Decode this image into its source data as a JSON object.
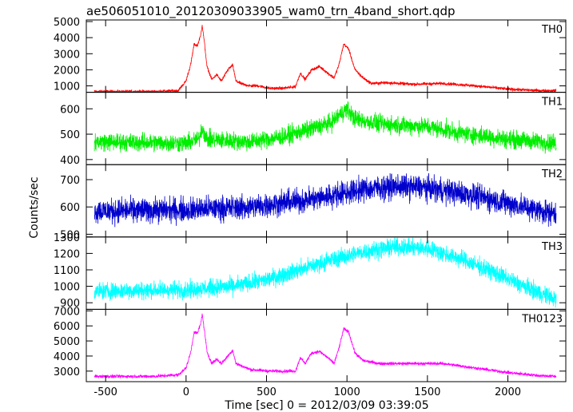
{
  "chart_data": {
    "type": "line",
    "title": "ae506051010_20120309033905_wam0_trn_4band_short.qdp",
    "xlabel": "Time [sec] 0 = 2012/03/09 03:39:05",
    "ylabel": "Counts/sec",
    "xlim": [
      -620,
      2360
    ],
    "x_ticks": [
      -500,
      0,
      500,
      1000,
      1500,
      2000
    ],
    "panels": [
      {
        "name": "TH0",
        "color": "#ff0000",
        "ylim": [
          600,
          5100
        ],
        "y_ticks": [
          1000,
          2000,
          3000,
          4000,
          5000
        ],
        "noise": 80,
        "points": [
          [
            -570,
            650
          ],
          [
            -200,
            650
          ],
          [
            -50,
            700
          ],
          [
            0,
            1300
          ],
          [
            30,
            2400
          ],
          [
            50,
            3600
          ],
          [
            70,
            3500
          ],
          [
            90,
            4100
          ],
          [
            100,
            4800
          ],
          [
            115,
            3600
          ],
          [
            130,
            2200
          ],
          [
            160,
            1400
          ],
          [
            190,
            1700
          ],
          [
            220,
            1300
          ],
          [
            260,
            2000
          ],
          [
            290,
            2300
          ],
          [
            310,
            1300
          ],
          [
            350,
            1100
          ],
          [
            400,
            1000
          ],
          [
            450,
            1000
          ],
          [
            520,
            850
          ],
          [
            600,
            850
          ],
          [
            680,
            950
          ],
          [
            710,
            1800
          ],
          [
            740,
            1400
          ],
          [
            780,
            2000
          ],
          [
            830,
            2200
          ],
          [
            880,
            1800
          ],
          [
            920,
            1500
          ],
          [
            950,
            2300
          ],
          [
            980,
            3600
          ],
          [
            1010,
            3300
          ],
          [
            1050,
            2000
          ],
          [
            1100,
            1500
          ],
          [
            1150,
            1150
          ],
          [
            1250,
            1200
          ],
          [
            1400,
            1100
          ],
          [
            1600,
            1150
          ],
          [
            1800,
            1000
          ],
          [
            2000,
            800
          ],
          [
            2200,
            700
          ],
          [
            2300,
            700
          ]
        ]
      },
      {
        "name": "TH1",
        "color": "#00ee00",
        "ylim": [
          380,
          665
        ],
        "y_ticks": [
          400,
          500,
          600
        ],
        "noise": 30,
        "points": [
          [
            -570,
            470
          ],
          [
            0,
            465
          ],
          [
            80,
            480
          ],
          [
            100,
            525
          ],
          [
            130,
            480
          ],
          [
            400,
            470
          ],
          [
            600,
            490
          ],
          [
            800,
            525
          ],
          [
            900,
            545
          ],
          [
            960,
            580
          ],
          [
            1000,
            600
          ],
          [
            1050,
            560
          ],
          [
            1200,
            540
          ],
          [
            1500,
            530
          ],
          [
            1700,
            505
          ],
          [
            2000,
            480
          ],
          [
            2300,
            465
          ]
        ]
      },
      {
        "name": "TH2",
        "color": "#0000cc",
        "ylim": [
          490,
          755
        ],
        "y_ticks": [
          500,
          600,
          700
        ],
        "noise": 38,
        "points": [
          [
            -570,
            585
          ],
          [
            0,
            590
          ],
          [
            400,
            600
          ],
          [
            800,
            630
          ],
          [
            1100,
            665
          ],
          [
            1300,
            675
          ],
          [
            1500,
            670
          ],
          [
            1800,
            640
          ],
          [
            2100,
            600
          ],
          [
            2300,
            575
          ]
        ]
      },
      {
        "name": "TH3",
        "color": "#00ffff",
        "ylim": [
          860,
          1300
        ],
        "y_ticks": [
          900,
          1000,
          1100,
          1200,
          1300
        ],
        "noise": 45,
        "points": [
          [
            -570,
            970
          ],
          [
            0,
            980
          ],
          [
            300,
            1000
          ],
          [
            500,
            1040
          ],
          [
            700,
            1100
          ],
          [
            900,
            1160
          ],
          [
            1100,
            1210
          ],
          [
            1300,
            1240
          ],
          [
            1500,
            1230
          ],
          [
            1700,
            1170
          ],
          [
            1900,
            1090
          ],
          [
            2100,
            1000
          ],
          [
            2300,
            920
          ]
        ]
      },
      {
        "name": "TH0123",
        "color": "#ff00ff",
        "ylim": [
          2300,
          7100
        ],
        "y_ticks": [
          3000,
          4000,
          5000,
          6000,
          7000
        ],
        "noise": 90,
        "points": [
          [
            -570,
            2650
          ],
          [
            -200,
            2650
          ],
          [
            -50,
            2750
          ],
          [
            0,
            3200
          ],
          [
            30,
            4300
          ],
          [
            50,
            5600
          ],
          [
            70,
            5500
          ],
          [
            90,
            6100
          ],
          [
            100,
            6800
          ],
          [
            115,
            5600
          ],
          [
            130,
            4300
          ],
          [
            160,
            3500
          ],
          [
            190,
            3800
          ],
          [
            220,
            3500
          ],
          [
            260,
            4000
          ],
          [
            290,
            4400
          ],
          [
            310,
            3500
          ],
          [
            400,
            3100
          ],
          [
            520,
            3000
          ],
          [
            680,
            3000
          ],
          [
            710,
            3900
          ],
          [
            740,
            3500
          ],
          [
            780,
            4200
          ],
          [
            830,
            4300
          ],
          [
            880,
            3900
          ],
          [
            920,
            3500
          ],
          [
            950,
            4500
          ],
          [
            980,
            5800
          ],
          [
            1010,
            5600
          ],
          [
            1050,
            4200
          ],
          [
            1100,
            3700
          ],
          [
            1200,
            3500
          ],
          [
            1400,
            3500
          ],
          [
            1600,
            3500
          ],
          [
            1800,
            3200
          ],
          [
            2000,
            2900
          ],
          [
            2200,
            2700
          ],
          [
            2300,
            2650
          ]
        ]
      }
    ]
  }
}
